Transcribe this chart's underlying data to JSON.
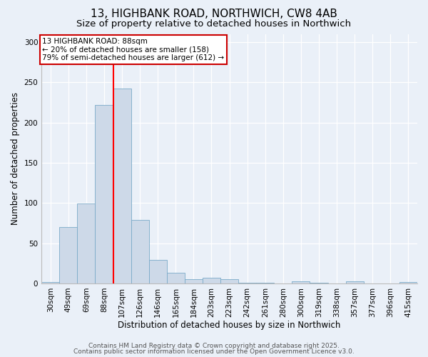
{
  "title": "13, HIGHBANK ROAD, NORTHWICH, CW8 4AB",
  "subtitle": "Size of property relative to detached houses in Northwich",
  "xlabel": "Distribution of detached houses by size in Northwich",
  "ylabel": "Number of detached properties",
  "categories": [
    "30sqm",
    "49sqm",
    "69sqm",
    "88sqm",
    "107sqm",
    "126sqm",
    "146sqm",
    "165sqm",
    "184sqm",
    "203sqm",
    "223sqm",
    "242sqm",
    "261sqm",
    "280sqm",
    "300sqm",
    "319sqm",
    "338sqm",
    "357sqm",
    "377sqm",
    "396sqm",
    "415sqm"
  ],
  "values": [
    2,
    70,
    99,
    222,
    242,
    79,
    29,
    13,
    5,
    7,
    5,
    1,
    1,
    0,
    3,
    1,
    0,
    3,
    0,
    0,
    2
  ],
  "bar_color": "#cdd9e8",
  "bar_edge_color": "#7aaac8",
  "red_line_x": 3.5,
  "annotation_text": "13 HIGHBANK ROAD: 88sqm\n← 20% of detached houses are smaller (158)\n79% of semi-detached houses are larger (612) →",
  "annotation_box_color": "#ffffff",
  "annotation_box_edge": "#cc0000",
  "ylim": [
    0,
    310
  ],
  "yticks": [
    0,
    50,
    100,
    150,
    200,
    250,
    300
  ],
  "bg_color": "#eaf0f8",
  "footer_line1": "Contains HM Land Registry data © Crown copyright and database right 2025.",
  "footer_line2": "Contains public sector information licensed under the Open Government Licence v3.0.",
  "title_fontsize": 11,
  "subtitle_fontsize": 9.5,
  "label_fontsize": 8.5,
  "tick_fontsize": 7.5,
  "annotation_fontsize": 7.5,
  "footer_fontsize": 6.5
}
